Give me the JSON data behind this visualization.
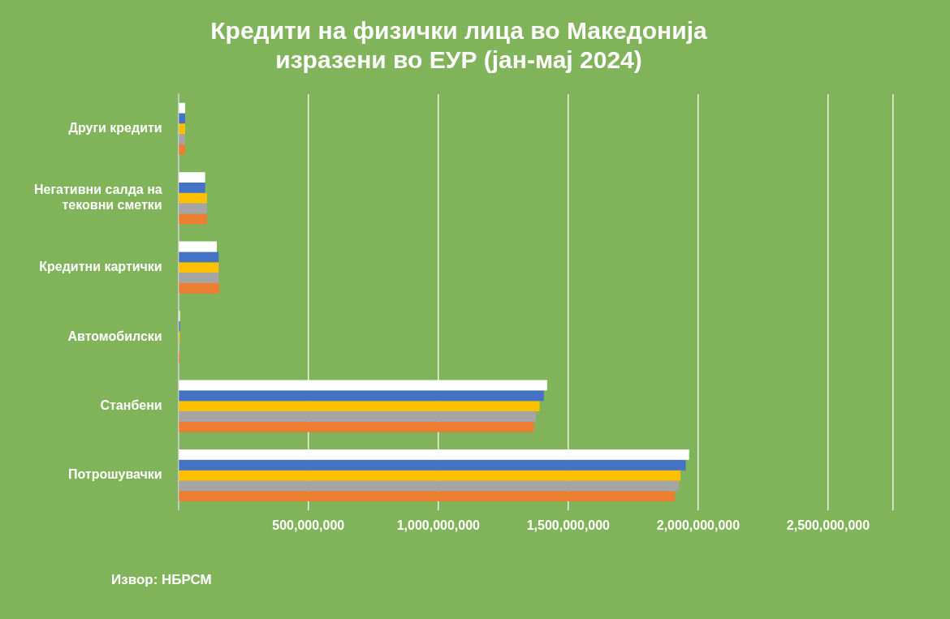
{
  "chart_data": {
    "type": "bar",
    "orientation": "horizontal",
    "title": "Кредити на физички лица во Македонија изразени во ЕУР (јан-мај 2024)",
    "categories": [
      "Други кредити",
      "Негативни салда на тековни сметки",
      "Кредитни картички",
      "Автомобилски",
      "Станбени",
      "Потрошувачки"
    ],
    "series": [
      {
        "color": "#ffffff",
        "values": [
          26000000,
          103000000,
          148000000,
          6000000,
          1419000000,
          1965000000
        ]
      },
      {
        "color": "#4472c4",
        "values": [
          26000000,
          103000000,
          155000000,
          6000000,
          1406000000,
          1952000000
        ]
      },
      {
        "color": "#ffc000",
        "values": [
          26000000,
          110000000,
          155000000,
          6000000,
          1390000000,
          1932000000
        ]
      },
      {
        "color": "#a5a5a5",
        "values": [
          26000000,
          110000000,
          155000000,
          null,
          1377000000,
          1926000000
        ]
      },
      {
        "color": "#ed7d31",
        "values": [
          26000000,
          110000000,
          158000000,
          6000000,
          1368000000,
          1910000000
        ]
      }
    ],
    "xlim": [
      0,
      2750000000
    ],
    "xticks": [
      {
        "value": 0,
        "label": null
      },
      {
        "value": 500000000,
        "label": "500,000,000"
      },
      {
        "value": 1000000000,
        "label": "1,000,000,000"
      },
      {
        "value": 1500000000,
        "label": "1,500,000,000"
      },
      {
        "value": 2000000000,
        "label": "2,000,000,000"
      },
      {
        "value": 2500000000,
        "label": "2,500,000,000"
      },
      {
        "value": 2750000000,
        "label": null
      }
    ],
    "grid": "x",
    "legend": false,
    "annotations": [
      "Извор: НБРСМ"
    ]
  }
}
